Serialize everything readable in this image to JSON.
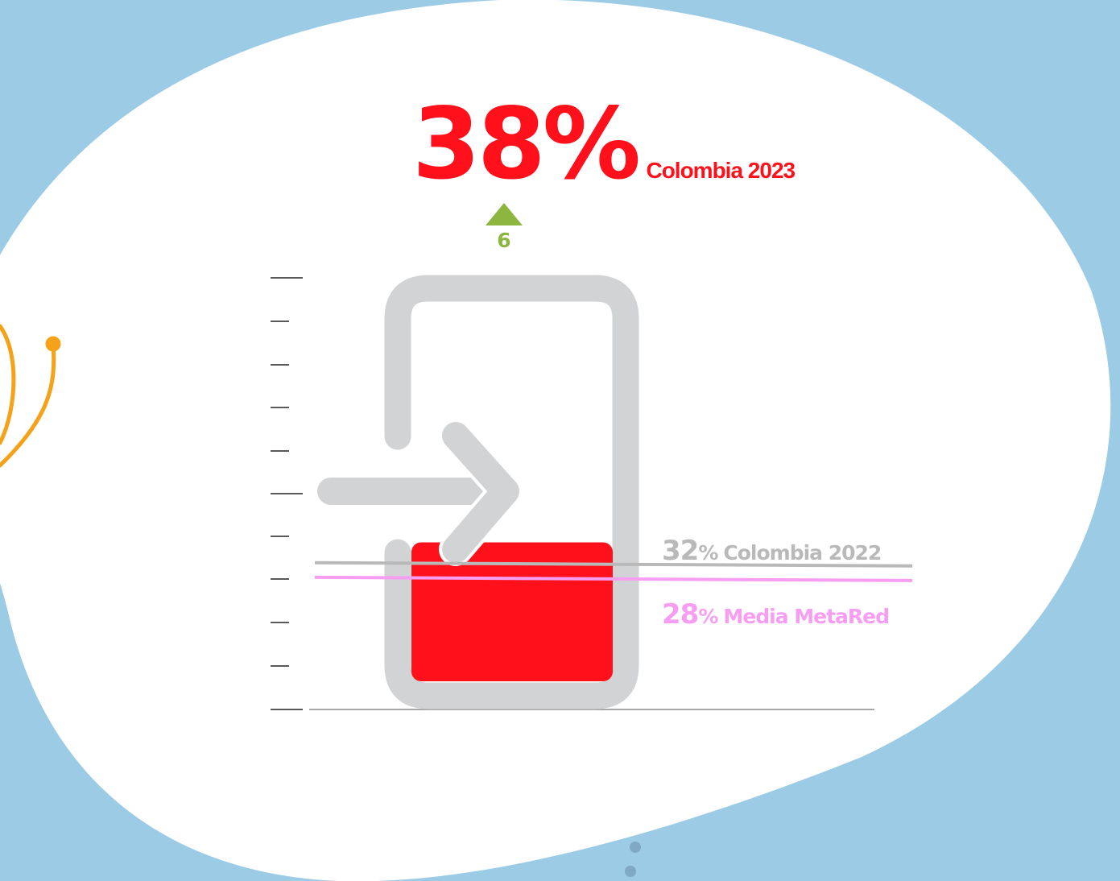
{
  "colors": {
    "background": "#9ccbe6",
    "panel": "#ffffff",
    "primary": "#ff101a",
    "increase": "#8db640",
    "reference_2022": "#b9b9b9",
    "reference_metared": "#f79ef3",
    "icon": "#d2d3d5",
    "decoration": "#f5a11a"
  },
  "icons": [
    "login-icon",
    "triangle-up-icon"
  ],
  "chart_data": {
    "type": "bar",
    "categories": [
      "Colombia 2023"
    ],
    "values": [
      38
    ],
    "ylim": [
      0,
      100
    ],
    "grid": false,
    "headline": {
      "value": "38%",
      "label": "Colombia 2023"
    },
    "change": {
      "value": "6",
      "direction": "up"
    },
    "reference_lines": [
      {
        "value": 32,
        "value_label": "32",
        "unit": "%",
        "label": "Colombia 2022"
      },
      {
        "value": 28,
        "value_label": "28",
        "unit": "%",
        "label": "Media MetaRed"
      }
    ]
  }
}
